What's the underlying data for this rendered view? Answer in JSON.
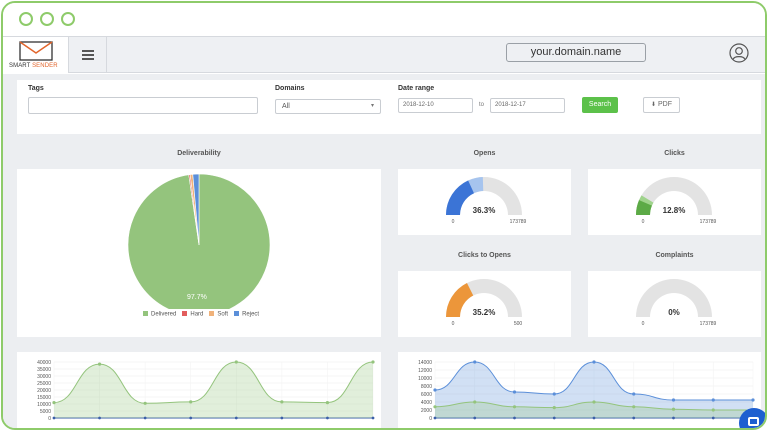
{
  "header": {
    "brand_part1": "SMART",
    "brand_part2": "SENDER",
    "domain": "your.domain.name"
  },
  "filters": {
    "tags_label": "Tags",
    "tags_value": "",
    "domains_label": "Domains",
    "domains_selected": "All",
    "date_range_label": "Date range",
    "date_from": "2018-12-10",
    "to_label": "to",
    "date_to": "2018-12-17",
    "search_label": "Search",
    "pdf_label": "PDF"
  },
  "deliverability": {
    "title": "Deliverability",
    "center_label": "97.7%",
    "legend": [
      {
        "label": "Delivered",
        "color": "#94c47d"
      },
      {
        "label": "Hard",
        "color": "#e25d5d"
      },
      {
        "label": "Soft",
        "color": "#f0b27a"
      },
      {
        "label": "Reject",
        "color": "#5b8fd9"
      }
    ]
  },
  "gauges": [
    {
      "title": "Opens",
      "value_label": "36.3%",
      "min": "0",
      "max": "173789"
    },
    {
      "title": "Clicks",
      "value_label": "12.8%",
      "min": "0",
      "max": "173789"
    },
    {
      "title": "Clicks to Opens",
      "value_label": "35.2%",
      "min": "0",
      "max": "500"
    },
    {
      "title": "Complaints",
      "value_label": "0%",
      "min": "0",
      "max": "173789"
    }
  ],
  "chart_data": [
    {
      "type": "pie",
      "title": "Deliverability",
      "labels": [
        "Delivered",
        "Hard",
        "Soft",
        "Reject"
      ],
      "values": [
        97.7,
        0.3,
        0.6,
        1.4
      ],
      "colors": [
        "#94c47d",
        "#e25d5d",
        "#f0b27a",
        "#5b8fd9"
      ]
    },
    {
      "type": "area",
      "title": "",
      "y_ticks": [
        "0",
        "5000",
        "10000",
        "15000",
        "20000",
        "25000",
        "30000",
        "35000",
        "40000"
      ],
      "ylim": [
        0,
        40000
      ],
      "series": [
        {
          "values": [
            11000,
            38500,
            10500,
            11500,
            40000,
            11500,
            11000,
            40000
          ],
          "color": "#94c47d"
        }
      ]
    },
    {
      "type": "area",
      "title": "",
      "y_ticks": [
        "0",
        "2000",
        "4000",
        "6000",
        "8000",
        "10000",
        "12000",
        "14000"
      ],
      "ylim": [
        0,
        14000
      ],
      "series": [
        {
          "values": [
            7000,
            14000,
            6500,
            6000,
            14000,
            6000,
            4500,
            4500,
            4500
          ],
          "color": "#5b8fd9"
        },
        {
          "values": [
            2800,
            4000,
            2800,
            2600,
            4000,
            2800,
            2200,
            2000,
            2000
          ],
          "color": "#94c47d"
        }
      ]
    }
  ]
}
